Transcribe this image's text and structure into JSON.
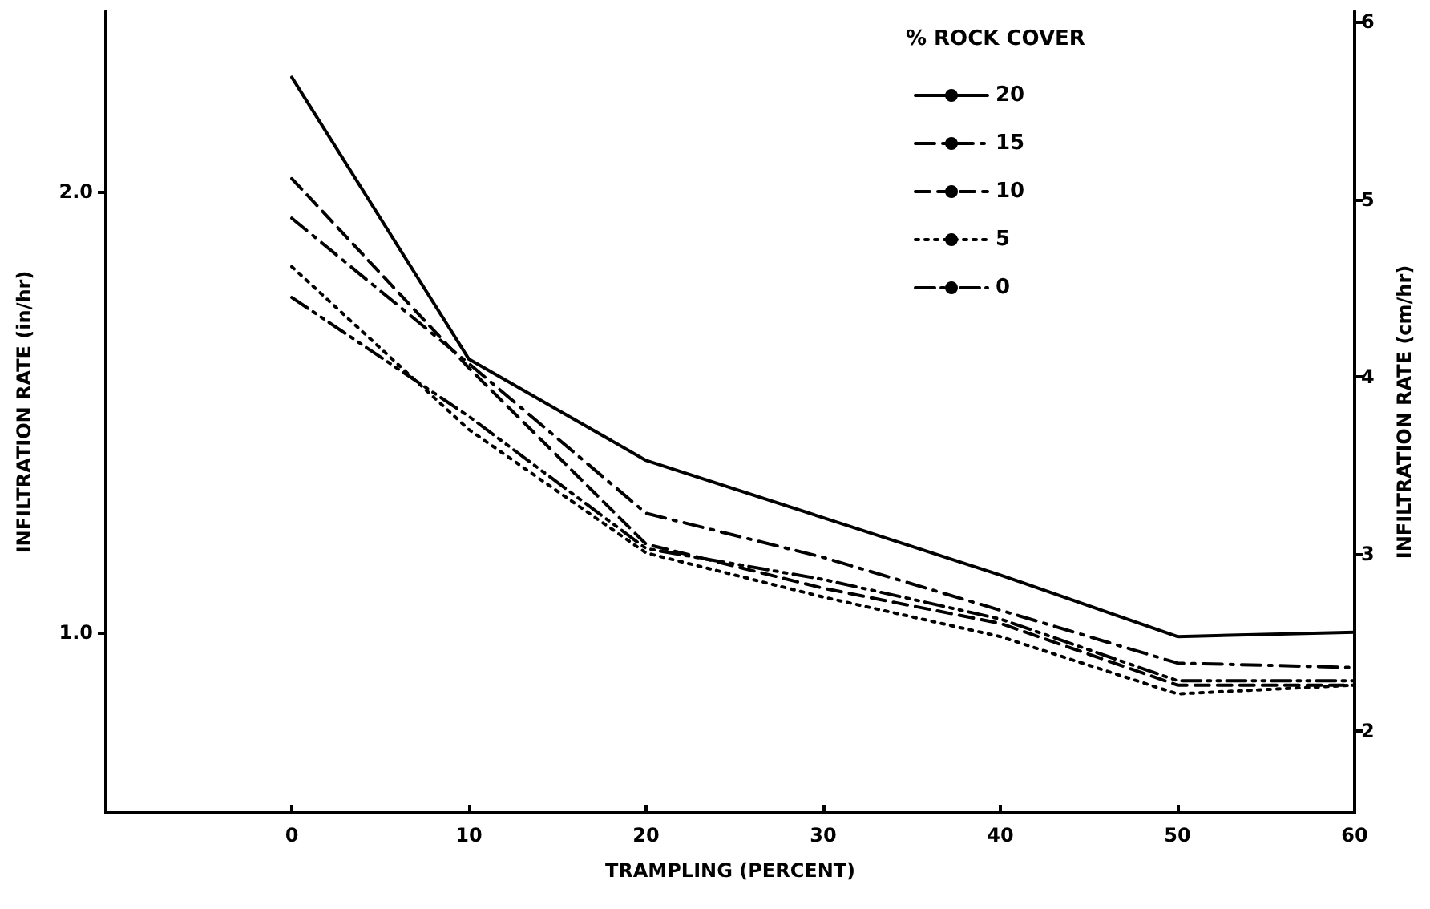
{
  "chart_data": {
    "type": "line",
    "xlabel": "TRAMPLING (PERCENT)",
    "ylabel": "INFILTRATION RATE (in/hr)",
    "y2label": "INFILTRATION RATE (cm/hr)",
    "legend_title": "% ROCK COVER",
    "legend": "top right",
    "grid": false,
    "marker": "none",
    "x": [
      0,
      10,
      20,
      30,
      40,
      50,
      60
    ],
    "xlim": [
      -10.5,
      60
    ],
    "xticks": [
      0,
      10,
      20,
      30,
      40,
      50,
      60
    ],
    "ylim": [
      0.59,
      2.41
    ],
    "yticks": [
      {
        "value": 1.0,
        "label": "1.0"
      },
      {
        "value": 2.0,
        "label": "2.0"
      }
    ],
    "y2lim": [
      1.54,
      6.06
    ],
    "y2ticks": [
      2,
      3,
      4,
      5,
      6
    ],
    "series": [
      {
        "name": "20",
        "color": "#000000",
        "line_style": "solid",
        "values": [
          2.26,
          1.62,
          1.39,
          1.26,
          1.13,
          0.99,
          1.0
        ]
      },
      {
        "name": "15",
        "color": "#000000",
        "line_style": "dashdot",
        "values": [
          1.94,
          1.61,
          1.27,
          1.17,
          1.05,
          0.93,
          0.92
        ]
      },
      {
        "name": "10",
        "color": "#000000",
        "line_style": "dashed",
        "values": [
          2.03,
          1.6,
          1.2,
          1.1,
          1.02,
          0.88,
          0.88
        ]
      },
      {
        "name": "5",
        "color": "#000000",
        "line_style": "dotted",
        "values": [
          1.83,
          1.46,
          1.18,
          1.08,
          0.99,
          0.86,
          0.88
        ]
      },
      {
        "name": "0",
        "color": "#000000",
        "line_style": "dashdotdot",
        "values": [
          1.76,
          1.49,
          1.19,
          1.12,
          1.03,
          0.89,
          0.89
        ]
      }
    ]
  }
}
